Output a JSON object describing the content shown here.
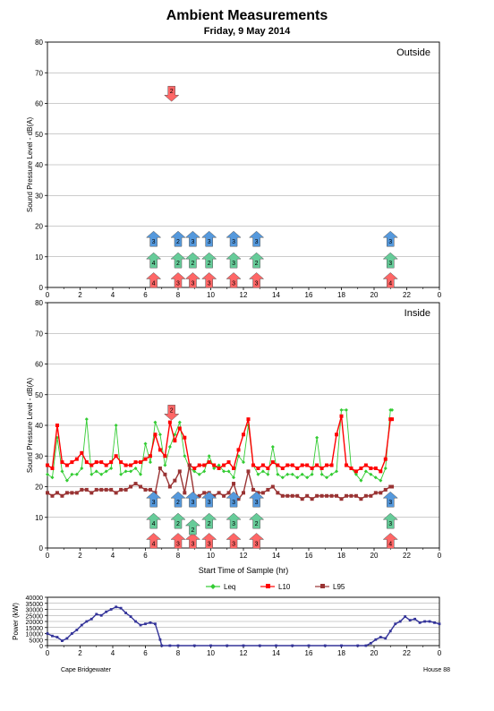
{
  "page": {
    "title": "Ambient Measurements",
    "subtitle": "Friday, 9 May 2014",
    "footer_left": "Cape Bridgewater",
    "footer_right": "House 88"
  },
  "chart_data": [
    {
      "type": "scatter",
      "panel": "Outside",
      "ylabel": "Sound Pressure Level - dB(A)",
      "xlim": [
        0,
        24
      ],
      "ylim": [
        0,
        80
      ],
      "x_ticks": [
        "0",
        "2",
        "4",
        "6",
        "8",
        "10",
        "12",
        "14",
        "16",
        "18",
        "20",
        "22",
        "0"
      ],
      "y_ticks": [
        "0",
        "10",
        "20",
        "30",
        "40",
        "50",
        "60",
        "70",
        "80"
      ],
      "grid": true,
      "markers": [
        {
          "kind": "down",
          "x": 7.6,
          "y": 63,
          "label": "2"
        },
        {
          "kind": "red",
          "x": 6.5,
          "y": 2.5,
          "label": "4"
        },
        {
          "kind": "red",
          "x": 8.0,
          "y": 2.5,
          "label": "3"
        },
        {
          "kind": "red",
          "x": 8.9,
          "y": 2.5,
          "label": "3"
        },
        {
          "kind": "red",
          "x": 9.9,
          "y": 2.5,
          "label": "3"
        },
        {
          "kind": "red",
          "x": 11.4,
          "y": 2.5,
          "label": "3"
        },
        {
          "kind": "red",
          "x": 12.8,
          "y": 2.5,
          "label": "3"
        },
        {
          "kind": "red",
          "x": 21.0,
          "y": 2.5,
          "label": "4"
        },
        {
          "kind": "green",
          "x": 6.5,
          "y": 9,
          "label": "4"
        },
        {
          "kind": "green",
          "x": 8.0,
          "y": 9,
          "label": "2"
        },
        {
          "kind": "green",
          "x": 8.9,
          "y": 9,
          "label": "2"
        },
        {
          "kind": "green",
          "x": 9.9,
          "y": 9,
          "label": "2"
        },
        {
          "kind": "green",
          "x": 11.4,
          "y": 9,
          "label": "3"
        },
        {
          "kind": "green",
          "x": 12.8,
          "y": 9,
          "label": "2"
        },
        {
          "kind": "green",
          "x": 21.0,
          "y": 9,
          "label": "3"
        },
        {
          "kind": "blue",
          "x": 6.5,
          "y": 16,
          "label": "3"
        },
        {
          "kind": "blue",
          "x": 8.0,
          "y": 16,
          "label": "2"
        },
        {
          "kind": "blue",
          "x": 8.9,
          "y": 16,
          "label": "3"
        },
        {
          "kind": "blue",
          "x": 9.9,
          "y": 16,
          "label": "3"
        },
        {
          "kind": "blue",
          "x": 11.4,
          "y": 16,
          "label": "3"
        },
        {
          "kind": "blue",
          "x": 12.8,
          "y": 16,
          "label": "3"
        },
        {
          "kind": "blue",
          "x": 21.0,
          "y": 16,
          "label": "3"
        }
      ]
    },
    {
      "type": "line",
      "panel": "Inside",
      "xlabel": "Start Time of Sample (hr)",
      "ylabel": "Sound Pressure Level - dB(A)",
      "xlim": [
        0,
        24
      ],
      "ylim": [
        0,
        80
      ],
      "x_ticks": [
        "0",
        "2",
        "4",
        "6",
        "8",
        "10",
        "12",
        "14",
        "16",
        "18",
        "20",
        "22",
        "0"
      ],
      "y_ticks": [
        "0",
        "10",
        "20",
        "30",
        "40",
        "50",
        "60",
        "70",
        "80"
      ],
      "grid": true,
      "legend": [
        "Leq",
        "L10",
        "L95"
      ],
      "legend_position": "bottom",
      "series": [
        {
          "name": "Leq",
          "color": "#33cc33",
          "marker": "diamond",
          "x": [
            0,
            0.3,
            0.6,
            0.9,
            1.2,
            1.5,
            1.8,
            2.1,
            2.4,
            2.7,
            3.0,
            3.3,
            3.6,
            3.9,
            4.2,
            4.5,
            4.8,
            5.1,
            5.4,
            5.7,
            6.0,
            6.3,
            6.6,
            6.9,
            7.2,
            7.5,
            7.8,
            8.1,
            8.4,
            8.7,
            9.0,
            9.3,
            9.6,
            9.9,
            10.2,
            10.5,
            10.8,
            11.1,
            11.4,
            11.7,
            12.0,
            12.3,
            12.6,
            12.9,
            13.2,
            13.5,
            13.8,
            14.1,
            14.4,
            14.7,
            15.0,
            15.3,
            15.6,
            15.9,
            16.2,
            16.5,
            16.8,
            17.1,
            17.4,
            17.7,
            18.0,
            18.3,
            18.6,
            18.9,
            19.2,
            19.5,
            19.8,
            20.1,
            20.4,
            20.7,
            21.0,
            21.1
          ],
          "values": [
            24,
            23,
            36,
            25,
            22,
            24,
            24,
            26,
            42,
            24,
            25,
            24,
            25,
            26,
            40,
            24,
            25,
            25,
            26,
            24,
            34,
            28,
            41,
            37,
            27,
            33,
            37,
            41,
            30,
            26,
            25,
            24,
            25,
            30,
            26,
            27,
            25,
            25,
            23,
            30,
            28,
            40,
            27,
            24,
            25,
            24,
            33,
            24,
            23,
            24,
            24,
            23,
            24,
            23,
            24,
            36,
            24,
            23,
            24,
            25,
            45,
            45,
            26,
            24,
            22,
            25,
            24,
            23,
            22,
            26,
            45,
            45
          ]
        },
        {
          "name": "L10",
          "color": "#ff0000",
          "marker": "square",
          "x": [
            0,
            0.3,
            0.6,
            0.9,
            1.2,
            1.5,
            1.8,
            2.1,
            2.4,
            2.7,
            3.0,
            3.3,
            3.6,
            3.9,
            4.2,
            4.5,
            4.8,
            5.1,
            5.4,
            5.7,
            6.0,
            6.3,
            6.6,
            6.9,
            7.2,
            7.5,
            7.8,
            8.1,
            8.4,
            8.7,
            9.0,
            9.3,
            9.6,
            9.9,
            10.2,
            10.5,
            10.8,
            11.1,
            11.4,
            11.7,
            12.0,
            12.3,
            12.6,
            12.9,
            13.2,
            13.5,
            13.8,
            14.1,
            14.4,
            14.7,
            15.0,
            15.3,
            15.6,
            15.9,
            16.2,
            16.5,
            16.8,
            17.1,
            17.4,
            17.7,
            18.0,
            18.3,
            18.6,
            18.9,
            19.2,
            19.5,
            19.8,
            20.1,
            20.4,
            20.7,
            21.0,
            21.1
          ],
          "values": [
            27,
            26,
            40,
            28,
            27,
            28,
            29,
            31,
            28,
            27,
            28,
            28,
            27,
            28,
            30,
            28,
            27,
            27,
            28,
            28,
            29,
            30,
            37,
            32,
            30,
            41,
            35,
            39,
            36,
            27,
            26,
            27,
            27,
            28,
            27,
            26,
            27,
            28,
            26,
            32,
            37,
            42,
            27,
            26,
            27,
            26,
            28,
            27,
            26,
            27,
            27,
            26,
            27,
            27,
            26,
            27,
            26,
            27,
            27,
            37,
            43,
            27,
            26,
            25,
            26,
            27,
            26,
            26,
            25,
            29,
            42,
            42
          ]
        },
        {
          "name": "L95",
          "color": "#993333",
          "marker": "square",
          "x": [
            0,
            0.3,
            0.6,
            0.9,
            1.2,
            1.5,
            1.8,
            2.1,
            2.4,
            2.7,
            3.0,
            3.3,
            3.6,
            3.9,
            4.2,
            4.5,
            4.8,
            5.1,
            5.4,
            5.7,
            6.0,
            6.3,
            6.6,
            6.9,
            7.2,
            7.5,
            7.8,
            8.1,
            8.4,
            8.7,
            9.0,
            9.3,
            9.6,
            9.9,
            10.2,
            10.5,
            10.8,
            11.1,
            11.4,
            11.7,
            12.0,
            12.3,
            12.6,
            12.9,
            13.2,
            13.5,
            13.8,
            14.1,
            14.4,
            14.7,
            15.0,
            15.3,
            15.6,
            15.9,
            16.2,
            16.5,
            16.8,
            17.1,
            17.4,
            17.7,
            18.0,
            18.3,
            18.6,
            18.9,
            19.2,
            19.5,
            19.8,
            20.1,
            20.4,
            20.7,
            21.0,
            21.1
          ],
          "values": [
            18,
            17,
            18,
            17,
            18,
            18,
            18,
            19,
            19,
            18,
            19,
            19,
            19,
            19,
            18,
            19,
            19,
            20,
            21,
            20,
            19,
            19,
            18,
            26,
            24,
            20,
            22,
            25,
            18,
            27,
            17,
            17,
            18,
            18,
            17,
            18,
            17,
            18,
            21,
            16,
            18,
            25,
            19,
            18,
            18,
            19,
            20,
            18,
            17,
            17,
            17,
            17,
            16,
            17,
            16,
            17,
            17,
            17,
            17,
            17,
            16,
            17,
            17,
            17,
            16,
            17,
            17,
            18,
            18,
            19,
            20,
            20
          ]
        }
      ],
      "markers": [
        {
          "kind": "down",
          "x": 7.6,
          "y": 44,
          "label": "2"
        },
        {
          "kind": "red",
          "x": 6.5,
          "y": 2.5,
          "label": "4"
        },
        {
          "kind": "red",
          "x": 8.0,
          "y": 2.5,
          "label": "3"
        },
        {
          "kind": "red",
          "x": 8.9,
          "y": 2.5,
          "label": "3"
        },
        {
          "kind": "red",
          "x": 9.9,
          "y": 2.5,
          "label": "3"
        },
        {
          "kind": "red",
          "x": 11.4,
          "y": 2.5,
          "label": "3"
        },
        {
          "kind": "red",
          "x": 12.8,
          "y": 2.5,
          "label": "3"
        },
        {
          "kind": "red",
          "x": 21.0,
          "y": 2.5,
          "label": "4"
        },
        {
          "kind": "green",
          "x": 6.5,
          "y": 9,
          "label": "4"
        },
        {
          "kind": "green",
          "x": 8.0,
          "y": 9,
          "label": "2"
        },
        {
          "kind": "green",
          "x": 8.9,
          "y": 7,
          "label": "2"
        },
        {
          "kind": "green",
          "x": 9.9,
          "y": 9,
          "label": "2"
        },
        {
          "kind": "green",
          "x": 11.4,
          "y": 9,
          "label": "3"
        },
        {
          "kind": "green",
          "x": 12.8,
          "y": 9,
          "label": "2"
        },
        {
          "kind": "green",
          "x": 21.0,
          "y": 9,
          "label": "3"
        },
        {
          "kind": "blue",
          "x": 6.5,
          "y": 16,
          "label": "3"
        },
        {
          "kind": "blue",
          "x": 8.0,
          "y": 16,
          "label": "2"
        },
        {
          "kind": "blue",
          "x": 8.9,
          "y": 16,
          "label": "3"
        },
        {
          "kind": "blue",
          "x": 9.9,
          "y": 16,
          "label": "3"
        },
        {
          "kind": "blue",
          "x": 11.4,
          "y": 16,
          "label": "3"
        },
        {
          "kind": "blue",
          "x": 12.8,
          "y": 16,
          "label": "3"
        },
        {
          "kind": "blue",
          "x": 21.0,
          "y": 16,
          "label": "3"
        }
      ]
    },
    {
      "type": "line",
      "panel": "Power",
      "ylabel": "Power (kW)",
      "xlim": [
        0,
        24
      ],
      "ylim": [
        0,
        40000
      ],
      "x_ticks": [
        "0",
        "2",
        "4",
        "6",
        "8",
        "10",
        "12",
        "14",
        "16",
        "18",
        "20",
        "22",
        "0"
      ],
      "y_ticks": [
        "0",
        "5000",
        "10000",
        "15000",
        "20000",
        "25000",
        "30000",
        "35000",
        "40000"
      ],
      "grid": true,
      "series": [
        {
          "name": "Power",
          "color": "#333399",
          "marker": "small-square",
          "x": [
            0,
            0.3,
            0.6,
            0.9,
            1.2,
            1.5,
            1.8,
            2.1,
            2.4,
            2.7,
            3.0,
            3.3,
            3.6,
            3.9,
            4.2,
            4.5,
            4.8,
            5.1,
            5.4,
            5.7,
            6.0,
            6.3,
            6.6,
            6.9,
            7.0,
            7.5,
            8,
            9,
            10,
            11,
            12,
            13,
            14,
            15,
            16,
            17,
            18,
            19,
            19.5,
            19.8,
            20.1,
            20.4,
            20.7,
            21.0,
            21.3,
            21.6,
            21.9,
            22.2,
            22.5,
            22.8,
            23.1,
            23.4,
            23.7,
            24.0
          ],
          "values": [
            10000,
            8000,
            7000,
            4000,
            6000,
            10000,
            13000,
            17000,
            20000,
            22000,
            26000,
            25000,
            28000,
            30000,
            32000,
            31000,
            27000,
            24000,
            20000,
            17000,
            18000,
            19000,
            18000,
            5000,
            0,
            0,
            0,
            0,
            0,
            0,
            0,
            0,
            0,
            0,
            0,
            0,
            0,
            0,
            0,
            2000,
            5000,
            7000,
            6000,
            12000,
            18000,
            20000,
            24000,
            21000,
            22000,
            19000,
            20000,
            20000,
            19000,
            18000
          ]
        }
      ]
    }
  ],
  "colors": {
    "leq": "#33cc33",
    "l10": "#ff0000",
    "l95": "#993333",
    "power": "#333399",
    "arrow_red": "#ff6666",
    "arrow_green": "#66cc99",
    "arrow_blue": "#5599dd"
  }
}
